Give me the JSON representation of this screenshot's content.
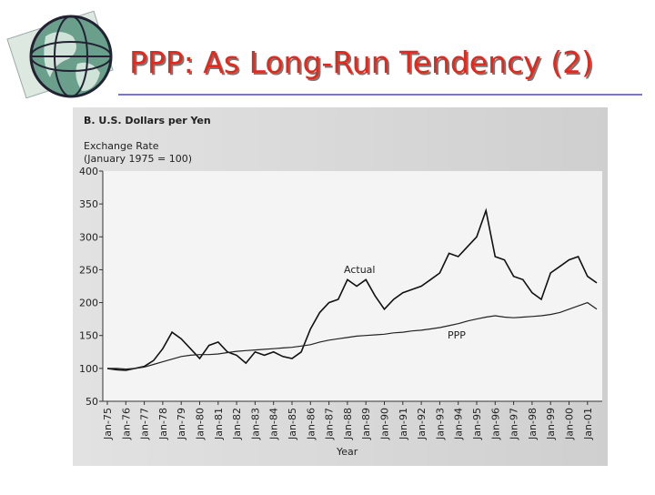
{
  "chart_data": {
    "type": "line",
    "title": "PPP: As Long-Run Tendency (2)",
    "subtitle": "B. U.S. Dollars per Yen",
    "ylabel": [
      "Exchange Rate",
      "(January 1975 = 100)"
    ],
    "xlabel": "Year",
    "annotations": [
      "Actual",
      "PPP"
    ],
    "categories": [
      "Jan-75",
      null,
      "Jan-76",
      null,
      "Jan-77",
      null,
      "Jan-78",
      null,
      "Jan-79",
      null,
      "Jan-80",
      null,
      "Jan-81",
      null,
      "Jan-82",
      null,
      "Jan-83",
      null,
      "Jan-84",
      null,
      "Jan-85",
      null,
      "Jan-86",
      null,
      "Jan-87",
      null,
      "Jan-88",
      null,
      "Jan-89",
      null,
      "Jan-90",
      null,
      "Jan-91",
      null,
      "Jan-92",
      null,
      "Jan-93",
      null,
      "Jan-94",
      null,
      "Jan-95",
      null,
      "Jan-96",
      null,
      "Jan-97",
      null,
      "Jan-98",
      null,
      "Jan-99",
      null,
      "Jan-00",
      null,
      "Jan-01",
      null
    ],
    "series": [
      {
        "name": "Actual",
        "color": "#111111",
        "values": [
          100,
          98,
          97,
          100,
          103,
          112,
          130,
          155,
          145,
          130,
          115,
          135,
          140,
          125,
          120,
          108,
          125,
          120,
          125,
          118,
          115,
          125,
          160,
          185,
          200,
          205,
          235,
          225,
          235,
          210,
          190,
          205,
          215,
          220,
          225,
          235,
          245,
          275,
          270,
          285,
          300,
          340,
          270,
          265,
          240,
          235,
          215,
          205,
          245,
          255,
          265,
          270,
          240,
          230
        ]
      },
      {
        "name": "PPP",
        "color": "#222222",
        "values": [
          100,
          100,
          99,
          100,
          102,
          106,
          110,
          114,
          118,
          120,
          121,
          121,
          122,
          124,
          126,
          127,
          128,
          129,
          130,
          131,
          132,
          134,
          136,
          140,
          143,
          145,
          147,
          149,
          150,
          151,
          152,
          154,
          155,
          157,
          158,
          160,
          162,
          165,
          168,
          172,
          175,
          178,
          180,
          178,
          177,
          178,
          179,
          180,
          182,
          185,
          190,
          195,
          200,
          190
        ]
      }
    ],
    "ylim": [
      50,
      400
    ],
    "yticks": [
      50,
      100,
      150,
      200,
      250,
      300,
      350,
      400
    ]
  }
}
